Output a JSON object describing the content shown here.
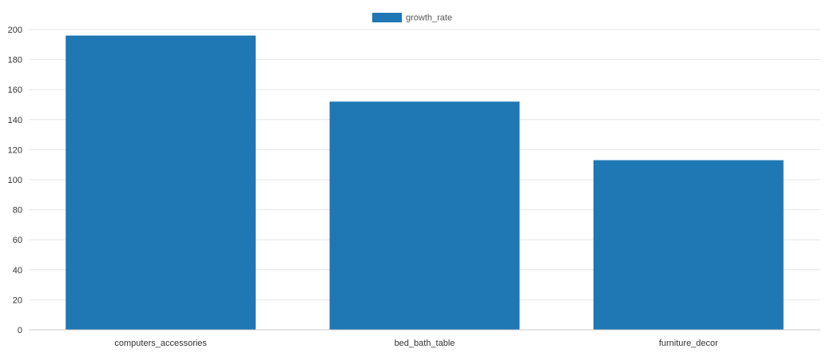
{
  "chart_data": {
    "type": "bar",
    "categories": [
      "computers_accessories",
      "bed_bath_table",
      "furniture_decor"
    ],
    "series": [
      {
        "name": "growth_rate",
        "values": [
          196,
          152,
          113
        ],
        "color": "#1f77b4"
      }
    ],
    "ylim": [
      0,
      200
    ],
    "yticks": [
      "0",
      "20",
      "40",
      "60",
      "80",
      "100",
      "120",
      "140",
      "160",
      "180",
      "200"
    ],
    "grid": true,
    "legend_position": "top-center",
    "gridline_color": "#e6e6e6",
    "axis_color": "#cccccc"
  }
}
